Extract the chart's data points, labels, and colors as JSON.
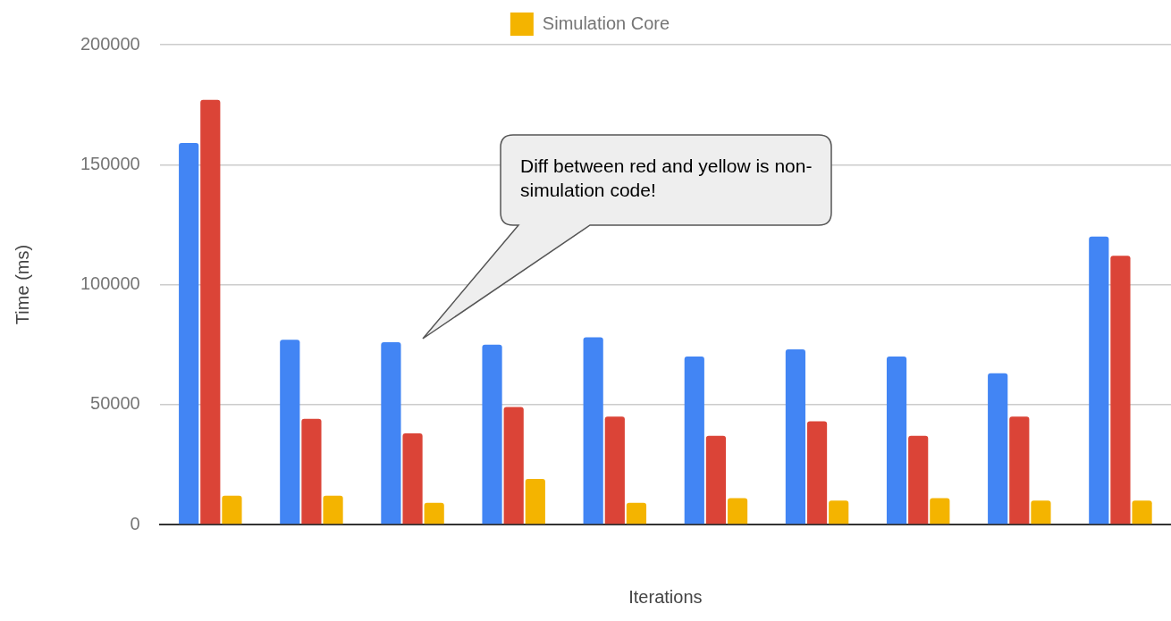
{
  "chart_data": {
    "type": "bar",
    "categories": [
      null,
      null,
      null,
      null,
      null,
      null,
      null,
      null,
      null,
      null
    ],
    "series": [
      {
        "color": "#4285f4",
        "values": [
          159000,
          77000,
          76000,
          75000,
          78000,
          70000,
          73000,
          70000,
          63000,
          120000
        ]
      },
      {
        "color": "#db4437",
        "values": [
          177000,
          44000,
          38000,
          49000,
          45000,
          37000,
          43000,
          37000,
          45000,
          112000
        ]
      },
      {
        "name": "Simulation Core",
        "color": "#f4b400",
        "values": [
          12000,
          12000,
          9000,
          19000,
          9000,
          11000,
          10000,
          11000,
          10000,
          10000
        ]
      }
    ],
    "xlabel": "Iterations",
    "ylabel": "Time (ms)",
    "ylim": [
      0,
      200000
    ],
    "yticks": [
      0,
      50000,
      100000,
      150000,
      200000
    ],
    "grid": "y",
    "legend": "top",
    "annotations": [
      "Diff between red and yellow is non-simulation code!"
    ]
  }
}
